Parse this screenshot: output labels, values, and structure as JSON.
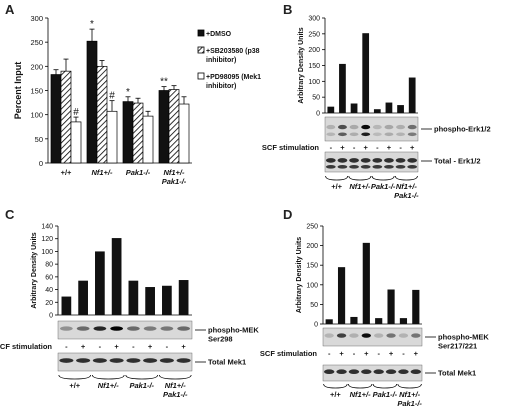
{
  "panels": [
    "A",
    "B",
    "C",
    "D"
  ],
  "chart_data": [
    {
      "id": "A",
      "type": "bar",
      "ylabel": "Percent Input",
      "ylim": [
        0,
        300
      ],
      "yticks": [
        0,
        50,
        100,
        150,
        200,
        250,
        300
      ],
      "categories": [
        "+/+",
        "Nf1+/-",
        "Pak1-/-",
        "Nf1+/- Pak1-/-"
      ],
      "category_lines": [
        [
          "+/+"
        ],
        [
          "Nf1+/-"
        ],
        [
          "Pak1-/-"
        ],
        [
          "Nf1+/-",
          "Pak1-/-"
        ]
      ],
      "series": [
        {
          "name": "+DMSO",
          "fill": "solid",
          "values": [
            183,
            252,
            127,
            150
          ],
          "errors": [
            10,
            25,
            10,
            8
          ]
        },
        {
          "name": "+SB203580 (p38 inhibitor)",
          "fill": "hatch",
          "values": [
            190,
            200,
            124,
            152
          ],
          "errors": [
            25,
            12,
            10,
            8
          ]
        },
        {
          "name": "+PD98095 (Mek1 inhibitor)",
          "fill": "open",
          "values": [
            85,
            107,
            97,
            122
          ],
          "errors": [
            10,
            22,
            10,
            15
          ]
        }
      ],
      "legend_lines": [
        [
          "+DMSO"
        ],
        [
          "+SB203580 (p38",
          "inhibitor)"
        ],
        [
          "+PD98095 (Mek1",
          "inhibitor)"
        ]
      ],
      "annotations": [
        {
          "text": "#",
          "category": 0,
          "series": 2
        },
        {
          "text": "*",
          "category": 1,
          "series": 0
        },
        {
          "text": "#",
          "category": 1,
          "series": 2
        },
        {
          "text": "*",
          "category": 2,
          "series": 0
        },
        {
          "text": "**",
          "category": 3,
          "series": 0
        }
      ]
    },
    {
      "id": "B",
      "type": "bar",
      "ylabel": "Arbitrary Density Units",
      "ylim": [
        0,
        300
      ],
      "yticks": [
        0,
        50,
        100,
        150,
        200,
        250,
        300
      ],
      "values": [
        20,
        155,
        30,
        252,
        12,
        33,
        25,
        112
      ],
      "blot_labels": [
        "phospho-Erk1/2",
        "Total - Erk1/2"
      ],
      "stim_label": "SCF stimulation",
      "stim": [
        "-",
        "+",
        "-",
        "+",
        "-",
        "+",
        "-",
        "+"
      ],
      "groups": [
        [
          "+/+"
        ],
        [
          "Nf1+/-"
        ],
        [
          "Pak1-/-"
        ],
        [
          "Nf1+/-",
          "Pak1-/-"
        ]
      ]
    },
    {
      "id": "C",
      "type": "bar",
      "ylabel": "Arbitrary Density Units",
      "ylim": [
        0,
        140
      ],
      "yticks": [
        0,
        20,
        40,
        60,
        80,
        100,
        120,
        140
      ],
      "values": [
        29,
        54,
        100,
        121,
        54,
        44,
        46,
        55
      ],
      "blot_labels": [
        "phospho-MEK",
        "Ser298",
        "Total Mek1"
      ],
      "stim_label": "SCF stimulation",
      "stim": [
        "-",
        "+",
        "-",
        "+",
        "-",
        "+",
        "-",
        "+"
      ],
      "groups": [
        [
          "+/+"
        ],
        [
          "Nf1+/-"
        ],
        [
          "Pak1-/-"
        ],
        [
          "Nf1+/-",
          "Pak1-/-"
        ]
      ]
    },
    {
      "id": "D",
      "type": "bar",
      "ylabel": "Arbitrary Density Units",
      "ylim": [
        0,
        250
      ],
      "yticks": [
        0,
        50,
        100,
        150,
        200,
        250
      ],
      "values": [
        12,
        145,
        18,
        207,
        15,
        88,
        15,
        87
      ],
      "blot_labels": [
        "phospho-MEK",
        "Ser217/221",
        "Total Mek1"
      ],
      "stim_label": "SCF stimulation",
      "stim": [
        "-",
        "+",
        "-",
        "+",
        "-",
        "+",
        "-",
        "+"
      ],
      "groups": [
        [
          "+/+"
        ],
        [
          "Nf1+/-"
        ],
        [
          "Pak1-/-"
        ],
        [
          "Nf1+/-",
          "Pak1-/-"
        ]
      ]
    }
  ]
}
